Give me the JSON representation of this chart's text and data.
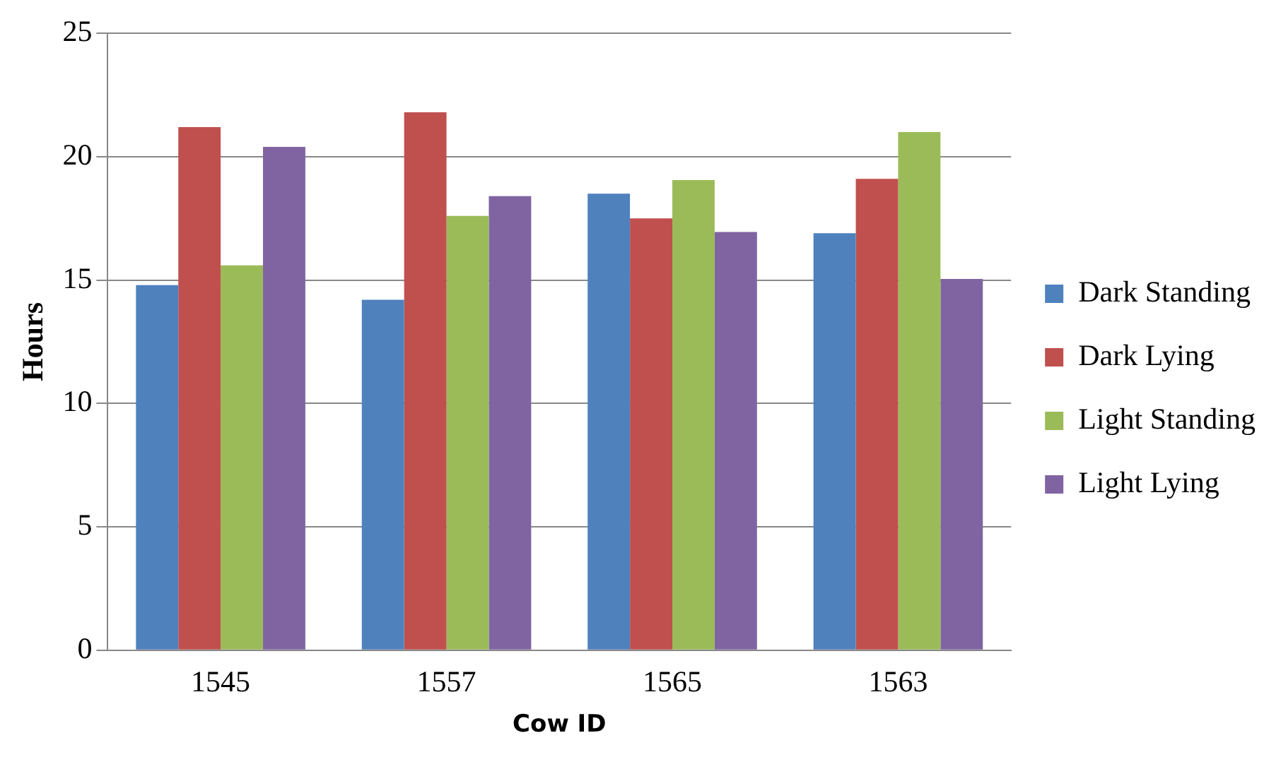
{
  "chart_data": {
    "type": "bar",
    "xlabel": "Cow ID",
    "ylabel": "Hours",
    "categories": [
      "1545",
      "1557",
      "1565",
      "1563"
    ],
    "series": [
      {
        "name": "Dark Standing",
        "color": "#4f81bd",
        "values": [
          14.8,
          14.2,
          18.5,
          16.9
        ]
      },
      {
        "name": "Dark Lying",
        "color": "#c0504d",
        "values": [
          21.2,
          21.8,
          17.5,
          19.1
        ]
      },
      {
        "name": "Light Standing",
        "color": "#9bbb59",
        "values": [
          15.6,
          17.6,
          19.05,
          21.0
        ]
      },
      {
        "name": "Light Lying",
        "color": "#8064a2",
        "values": [
          20.4,
          18.4,
          16.95,
          15.05
        ]
      }
    ],
    "ylim": [
      0,
      25
    ],
    "yticks": [
      0,
      5,
      10,
      15,
      20,
      25
    ],
    "grid": "y",
    "legend": "right"
  }
}
